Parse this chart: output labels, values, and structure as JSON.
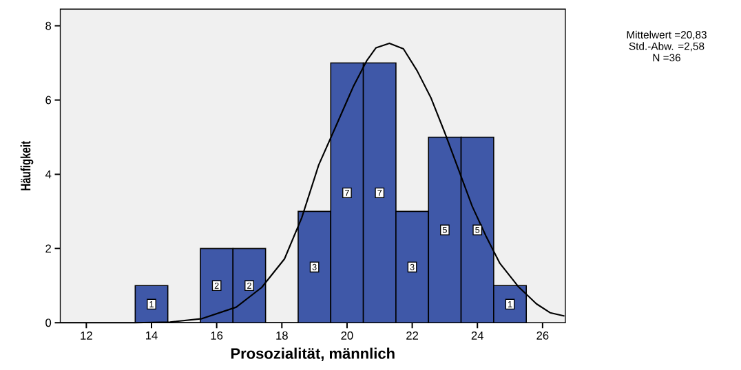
{
  "chart_data": {
    "type": "histogram",
    "xlabel": "Prosozialität, männlich",
    "ylabel": "Häufigkeit",
    "annotations": [
      "Mittelwert =20,83",
      "Std.-Abw. =2,58",
      "N =36"
    ],
    "xlim": [
      11.2,
      26.7
    ],
    "ylim": [
      0,
      8.45
    ],
    "xticks": [
      12,
      14,
      16,
      18,
      20,
      22,
      24,
      26
    ],
    "yticks": [
      0,
      2,
      4,
      6,
      8
    ],
    "grid": false,
    "series": [
      {
        "color": "#3f58a8",
        "bins": [
          13.5,
          14.5,
          15.5,
          16.5,
          17.5,
          18.5,
          19.5,
          20.5,
          21.5,
          22.5,
          23.5,
          24.5,
          25.5
        ],
        "values": [
          1,
          0,
          2,
          2,
          0,
          3,
          7,
          7,
          3,
          5,
          5,
          1
        ],
        "value_labels": [
          "1",
          null,
          "2",
          "2",
          null,
          "3",
          "7",
          "7",
          "3",
          "5",
          "5",
          "1"
        ]
      },
      {
        "type": "line",
        "color": "#000000",
        "x": [
          11.2,
          13.5,
          14.57,
          15.55,
          16.6,
          17.38,
          18.08,
          18.61,
          19.13,
          19.63,
          20.19,
          20.61,
          20.89,
          21.3,
          21.73,
          22.15,
          22.58,
          23.0,
          23.42,
          23.84,
          24.26,
          24.69,
          25.25,
          25.81,
          26.23,
          26.67
        ],
        "values": [
          0,
          0,
          0.02,
          0.11,
          0.42,
          0.95,
          1.72,
          2.83,
          4.25,
          5.24,
          6.36,
          7.07,
          7.41,
          7.53,
          7.38,
          6.79,
          6.05,
          5.12,
          4.13,
          3.14,
          2.34,
          1.6,
          0.98,
          0.51,
          0.27,
          0.18
        ]
      }
    ]
  }
}
